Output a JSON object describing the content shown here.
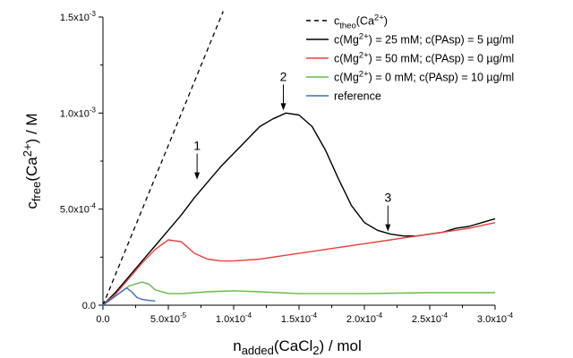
{
  "chart_data": {
    "type": "line",
    "xlabel": "n",
    "xlabel_sub": "added",
    "xlabel_tail": "(CaCl",
    "xlabel_sub2": "2",
    "xlabel_tail2": ") / mol",
    "ylabel": "c",
    "ylabel_sub": "free",
    "ylabel_mid": "(Ca",
    "ylabel_sup": "2+",
    "ylabel_tail": ") / M",
    "xlim": [
      0,
      0.0003
    ],
    "ylim": [
      0,
      0.0015
    ],
    "x_tick_labels": [
      "0.0",
      "5.0x10",
      "1.0x10",
      "1.5x10",
      "2.0x10",
      "2.5x10",
      "3.0x10"
    ],
    "x_tick_exponents": [
      "",
      "-5",
      "-4",
      "-4",
      "-4",
      "-4",
      "-4"
    ],
    "x_ticks": [
      0,
      5e-05,
      0.0001,
      0.00015,
      0.0002,
      0.00025,
      0.0003
    ],
    "y_tick_labels": [
      "0.0",
      "5.0x10",
      "1.0x10",
      "1.5x10"
    ],
    "y_tick_exponents": [
      "",
      "-4",
      "-3",
      "-3"
    ],
    "y_ticks": [
      0,
      0.0005,
      0.001,
      0.0015
    ],
    "legend_position": "top-right",
    "series": [
      {
        "name": "c",
        "name_sub": "theo",
        "name_tail": "(Ca",
        "name_sup": "2+",
        "name_tail2": ")",
        "color": "#000000",
        "dash": true,
        "x": [
          0,
          9.2e-05
        ],
        "y": [
          0,
          0.00153
        ]
      },
      {
        "name": "c(Mg",
        "name_sup": "2+",
        "name_tail": ") = 25 mM; c(PAsp) = 5 µg/ml",
        "color": "#000000",
        "dash": false,
        "x": [
          0,
          1e-05,
          2e-05,
          3e-05,
          4e-05,
          5e-05,
          6e-05,
          7e-05,
          8e-05,
          9e-05,
          0.0001,
          0.00011,
          0.00012,
          0.00013,
          0.00014,
          0.00015,
          0.00016,
          0.00017,
          0.00018,
          0.00019,
          0.0002,
          0.00021,
          0.00022,
          0.00023,
          0.00024,
          0.00025,
          0.00026,
          0.00027,
          0.00028,
          0.00029,
          0.0003
        ],
        "y": [
          0,
          7e-05,
          0.00015,
          0.00023,
          0.00031,
          0.00039,
          0.00047,
          0.00056,
          0.00064,
          0.00072,
          0.00079,
          0.00086,
          0.00093,
          0.00097,
          0.001,
          0.00099,
          0.00093,
          0.00081,
          0.00066,
          0.00052,
          0.00043,
          0.00039,
          0.00037,
          0.00036,
          0.00036,
          0.00037,
          0.00038,
          0.0004,
          0.00041,
          0.00043,
          0.00045
        ]
      },
      {
        "name": "c(Mg",
        "name_sup": "2+",
        "name_tail": ") = 50 mM; c(PAsp) = 0 µg/ml",
        "color": "#e8413c",
        "dash": false,
        "x": [
          0,
          1e-05,
          2e-05,
          3e-05,
          4e-05,
          5e-05,
          6e-05,
          7e-05,
          8e-05,
          9e-05,
          0.0001,
          0.00012,
          0.00014,
          0.00016,
          0.00018,
          0.0002,
          0.00022,
          0.00024,
          0.00026,
          0.00028,
          0.0003
        ],
        "y": [
          0,
          6e-05,
          0.00014,
          0.00022,
          0.00029,
          0.00034,
          0.00033,
          0.00027,
          0.00024,
          0.00023,
          0.00023,
          0.00024,
          0.00026,
          0.00028,
          0.0003,
          0.00032,
          0.00034,
          0.00036,
          0.00038,
          0.0004,
          0.00043
        ]
      },
      {
        "name": "c(Mg",
        "name_sup": "2+",
        "name_tail": ") = 0 mM; c(PAsp) = 10 µg/ml",
        "color": "#66bb44",
        "dash": false,
        "x": [
          0,
          1e-05,
          2e-05,
          3e-05,
          3.5e-05,
          4e-05,
          5e-05,
          6e-05,
          8e-05,
          0.0001,
          0.00012,
          0.00015,
          0.0002,
          0.00025,
          0.0003
        ],
        "y": [
          0,
          5e-05,
          0.0001,
          0.00012,
          0.00011,
          8e-05,
          6e-05,
          6e-05,
          7e-05,
          7.5e-05,
          7e-05,
          6e-05,
          6e-05,
          6.5e-05,
          6.5e-05
        ]
      },
      {
        "name": "reference",
        "color": "#3a6fc4",
        "dash": false,
        "x": [
          0,
          1e-05,
          1.8e-05,
          2.2e-05,
          2.6e-05,
          3e-05,
          3.5e-05,
          4e-05
        ],
        "y": [
          0,
          5e-05,
          9e-05,
          7e-05,
          4e-05,
          3e-05,
          2.5e-05,
          2.2e-05
        ]
      }
    ],
    "annotations": [
      {
        "label": "1",
        "x": 7.2e-05,
        "y": 0.00064
      },
      {
        "label": "2",
        "x": 0.000138,
        "y": 0.001
      },
      {
        "label": "3",
        "x": 0.000218,
        "y": 0.00037
      }
    ]
  }
}
